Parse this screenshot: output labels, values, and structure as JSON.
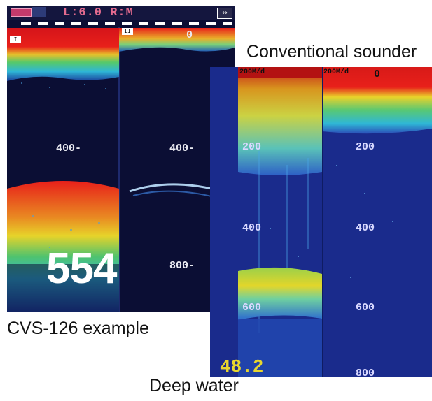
{
  "captions": {
    "conventional": "Conventional sounder",
    "cvs": "CVS-126 example",
    "deep": "Deep water"
  },
  "left_screen": {
    "status_text": "L:6.0 R:M",
    "corner_icon": "arrows-icon",
    "marker_left": "I",
    "marker_right": "II",
    "top_zero": "0",
    "depth_labels_left": [
      "400-"
    ],
    "depth_labels_right": [
      "400-",
      "800-"
    ],
    "big_depth": "554"
  },
  "right_screen": {
    "top_left_range": "200M/d",
    "top_right_range": "200M/d",
    "top_zero": "0",
    "left_labels": [
      "200",
      "400",
      "600"
    ],
    "right_labels": [
      "200",
      "400",
      "600",
      "800"
    ],
    "bottom_readout": "48.2"
  },
  "colors": {
    "deep_background": "#0b0e34",
    "right_background": "#1a2b8c",
    "echo_red": "#e8201a",
    "echo_yellow": "#e9d32a",
    "echo_cyan": "#2fc7d6",
    "echo_blue": "#2b6cd8"
  }
}
